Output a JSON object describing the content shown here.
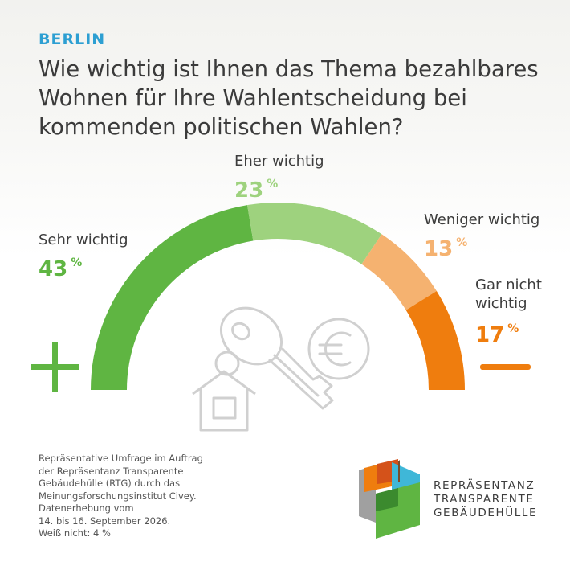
{
  "header": {
    "kicker": "BERLIN",
    "title": "Wie wichtig ist Ihnen das Thema bezahlbares Wohnen für Ihre Wahlentscheidung bei kommenden politischen Wahlen?"
  },
  "chart_data": {
    "type": "pie",
    "shape": "half-donut gauge",
    "categories": [
      "Sehr wichtig",
      "Eher wichtig",
      "Weniger wichtig",
      "Gar nicht wichtig"
    ],
    "values": [
      43,
      23,
      13,
      17
    ],
    "unit": "%",
    "colors": [
      "#5fb542",
      "#9ed27e",
      "#f5b270",
      "#ef7d0e"
    ],
    "scale_start_symbol": "+",
    "scale_end_symbol": "−",
    "legend_position": "around-arc"
  },
  "labels": {
    "sehr": {
      "name": "Sehr wichtig",
      "value": "43",
      "pct": "%"
    },
    "eher": {
      "name": "Eher wichtig",
      "value": "23",
      "pct": "%"
    },
    "weniger": {
      "name": "Weniger wichtig",
      "value": "13",
      "pct": "%"
    },
    "gar": {
      "name_line1": "Gar nicht",
      "name_line2": "wichtig",
      "value": "17",
      "pct": "%"
    }
  },
  "footnote": {
    "lines": [
      "Repräsentative Umfrage im Auftrag",
      "der Repräsentanz Transparente",
      "Gebäudehülle (RTG) durch das",
      "Meinungsforschungsinstitut Civey.",
      "Datenerhebung vom",
      "14. bis 16. September 2026.",
      "Weiß nicht: 4 %"
    ]
  },
  "brand": {
    "line1": "REPRÄSENTANZ",
    "line2": "TRANSPARENTE",
    "line3": "GEBÄUDEHÜLLE"
  },
  "icons": [
    "key-icon",
    "house-icon",
    "euro-coin-icon",
    "rtg-logo-icon"
  ]
}
